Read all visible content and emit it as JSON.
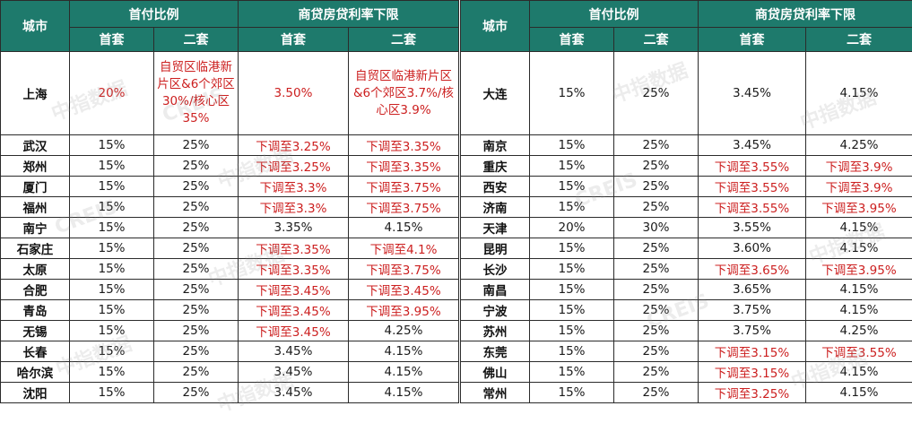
{
  "headers": {
    "city": "城市",
    "down_payment": "首付比例",
    "rate_floor": "商贷房贷利率下限",
    "first": "首套",
    "second": "二套"
  },
  "colors": {
    "header_bg": "#1e7a6c",
    "highlight_text": "#cc1f1f"
  },
  "watermark": [
    "中指数据",
    "CREIS"
  ],
  "left_rows": [
    {
      "city": "上海",
      "dp1": "20%",
      "dp2": "自贸区临港新片区&6个郊区30%/核心区35%",
      "r1": "3.50%",
      "r2": "自贸区临港新片区&6个郊区3.7%/核心区3.9%"
    },
    {
      "city": "武汉",
      "dp1": "15%",
      "dp2": "25%",
      "r1": "下调至3.25%",
      "r2": "下调至3.35%"
    },
    {
      "city": "郑州",
      "dp1": "15%",
      "dp2": "25%",
      "r1": "下调至3.25%",
      "r2": "下调至3.35%"
    },
    {
      "city": "厦门",
      "dp1": "15%",
      "dp2": "25%",
      "r1": "下调至3.3%",
      "r2": "下调至3.75%"
    },
    {
      "city": "福州",
      "dp1": "15%",
      "dp2": "25%",
      "r1": "下调至3.3%",
      "r2": "下调至3.75%"
    },
    {
      "city": "南宁",
      "dp1": "15%",
      "dp2": "25%",
      "r1": "3.35%",
      "r2": "4.15%"
    },
    {
      "city": "石家庄",
      "dp1": "15%",
      "dp2": "25%",
      "r1": "下调至3.35%",
      "r2": "下调至4.1%"
    },
    {
      "city": "太原",
      "dp1": "15%",
      "dp2": "25%",
      "r1": "下调至3.35%",
      "r2": "下调至3.75%"
    },
    {
      "city": "合肥",
      "dp1": "15%",
      "dp2": "25%",
      "r1": "下调至3.45%",
      "r2": "下调至3.45%"
    },
    {
      "city": "青岛",
      "dp1": "15%",
      "dp2": "25%",
      "r1": "下调至3.45%",
      "r2": "下调至3.95%"
    },
    {
      "city": "无锡",
      "dp1": "15%",
      "dp2": "25%",
      "r1": "下调至3.45%",
      "r2": "4.25%"
    },
    {
      "city": "长春",
      "dp1": "15%",
      "dp2": "25%",
      "r1": "3.45%",
      "r2": "4.15%"
    },
    {
      "city": "哈尔滨",
      "dp1": "15%",
      "dp2": "25%",
      "r1": "3.45%",
      "r2": "4.15%"
    },
    {
      "city": "沈阳",
      "dp1": "15%",
      "dp2": "25%",
      "r1": "3.45%",
      "r2": "4.15%"
    }
  ],
  "right_rows": [
    {
      "city": "大连",
      "dp1": "15%",
      "dp2": "25%",
      "r1": "3.45%",
      "r2": "4.15%"
    },
    {
      "city": "南京",
      "dp1": "15%",
      "dp2": "25%",
      "r1": "3.45%",
      "r2": "4.25%"
    },
    {
      "city": "重庆",
      "dp1": "15%",
      "dp2": "25%",
      "r1": "下调至3.55%",
      "r2": "下调至3.9%"
    },
    {
      "city": "西安",
      "dp1": "15%",
      "dp2": "25%",
      "r1": "下调至3.55%",
      "r2": "下调至3.9%"
    },
    {
      "city": "济南",
      "dp1": "15%",
      "dp2": "25%",
      "r1": "下调至3.55%",
      "r2": "下调至3.95%"
    },
    {
      "city": "天津",
      "dp1": "20%",
      "dp2": "30%",
      "r1": "3.55%",
      "r2": "4.15%"
    },
    {
      "city": "昆明",
      "dp1": "15%",
      "dp2": "25%",
      "r1": "3.60%",
      "r2": "4.15%"
    },
    {
      "city": "长沙",
      "dp1": "15%",
      "dp2": "25%",
      "r1": "下调至3.65%",
      "r2": "下调至3.95%"
    },
    {
      "city": "南昌",
      "dp1": "15%",
      "dp2": "25%",
      "r1": "3.65%",
      "r2": "4.15%"
    },
    {
      "city": "宁波",
      "dp1": "15%",
      "dp2": "25%",
      "r1": "3.75%",
      "r2": "4.15%"
    },
    {
      "city": "苏州",
      "dp1": "15%",
      "dp2": "25%",
      "r1": "3.75%",
      "r2": "4.25%"
    },
    {
      "city": "东莞",
      "dp1": "15%",
      "dp2": "25%",
      "r1": "下调至3.15%",
      "r2": "下调至3.55%"
    },
    {
      "city": "佛山",
      "dp1": "15%",
      "dp2": "25%",
      "r1": "下调至3.15%",
      "r2": "4.15%"
    },
    {
      "city": "常州",
      "dp1": "15%",
      "dp2": "25%",
      "r1": "下调至3.25%",
      "r2": "4.15%"
    }
  ]
}
